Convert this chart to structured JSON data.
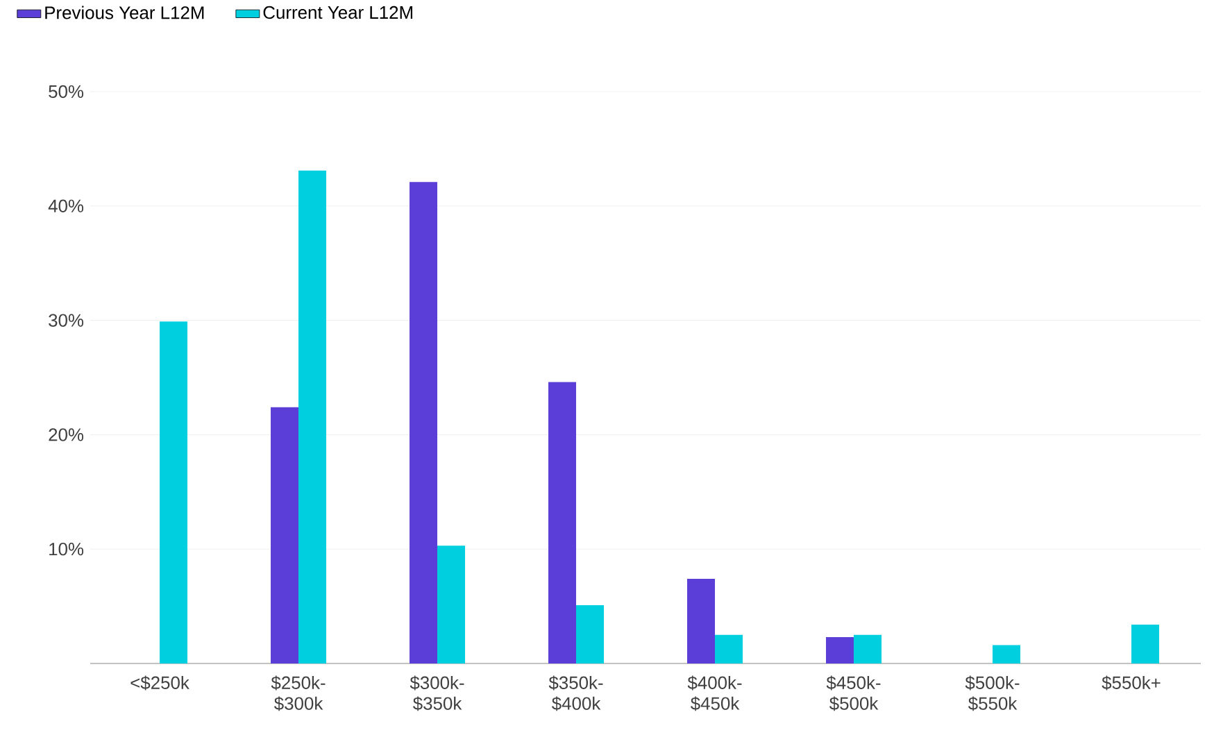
{
  "chart_data": {
    "type": "bar",
    "categories": [
      "<$250k",
      "$250k- $300k",
      "$300k- $350k",
      "$350k- $400k",
      "$400k- $450k",
      "$450k- $500k",
      "$500k- $550k",
      "$550k+"
    ],
    "series": [
      {
        "name": "Previous Year L12M",
        "color": "#5b3ed8",
        "values": [
          null,
          22.4,
          42.1,
          24.6,
          7.4,
          2.3,
          null,
          null
        ]
      },
      {
        "name": "Current Year L12M",
        "color": "#00cfe0",
        "values": [
          29.9,
          43.1,
          10.3,
          5.1,
          2.5,
          2.5,
          1.6,
          3.4
        ]
      }
    ],
    "ylim": [
      0,
      50
    ],
    "yticks": [
      {
        "value": 10,
        "label": "10%"
      },
      {
        "value": 20,
        "label": "20%"
      },
      {
        "value": 30,
        "label": "30%"
      },
      {
        "value": 40,
        "label": "40%"
      },
      {
        "value": 50,
        "label": "50%"
      }
    ],
    "grid": "y",
    "legend": "top left"
  }
}
